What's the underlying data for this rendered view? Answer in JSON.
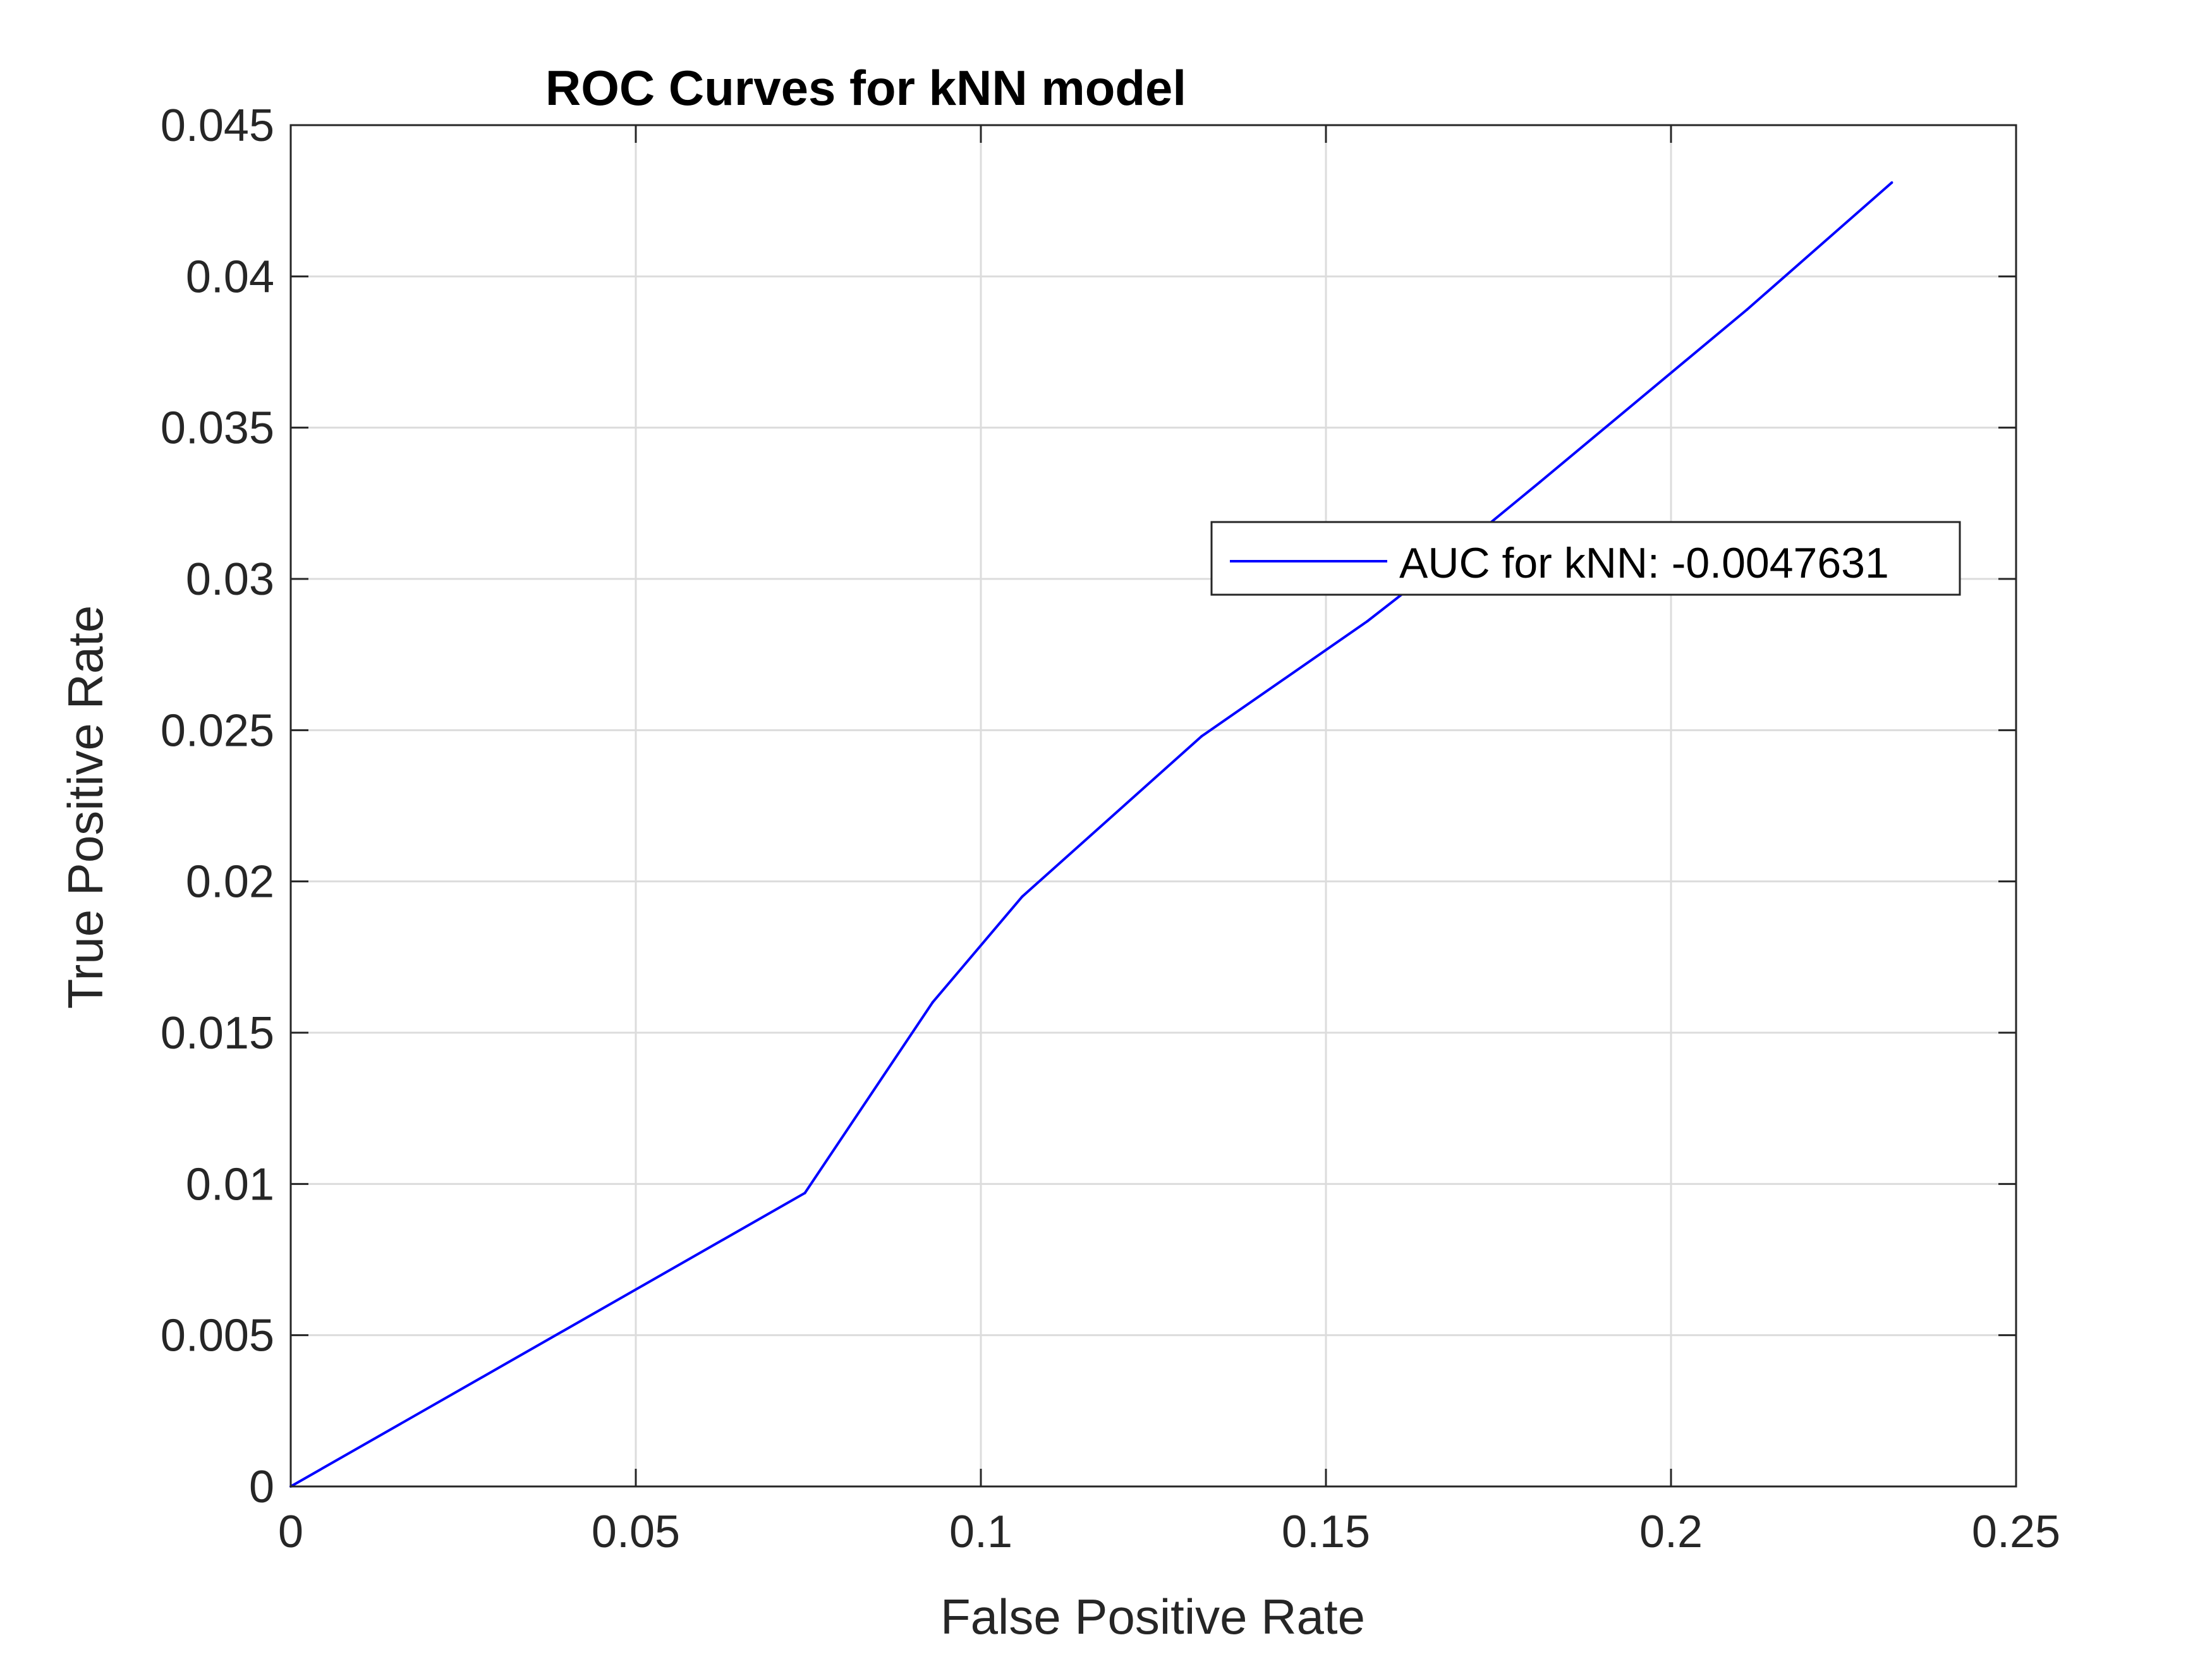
{
  "chart_data": {
    "type": "line",
    "title": "ROC Curves for kNN model",
    "xlabel": "False Positive Rate",
    "ylabel": "True Positive Rate",
    "xlim": [
      0,
      0.25
    ],
    "ylim": [
      0,
      0.045
    ],
    "xticks": [
      0,
      0.05,
      0.1,
      0.15,
      0.2,
      0.25
    ],
    "xtick_labels": [
      "0",
      "0.05",
      "0.1",
      "0.15",
      "0.2",
      "0.25"
    ],
    "yticks": [
      0,
      0.005,
      0.01,
      0.015,
      0.02,
      0.025,
      0.03,
      0.035,
      0.04,
      0.045
    ],
    "ytick_labels": [
      "0",
      "0.005",
      "0.01",
      "0.015",
      "0.02",
      "0.025",
      "0.03",
      "0.035",
      "0.04",
      "0.045"
    ],
    "grid": true,
    "legend_position": "upper-right",
    "series": [
      {
        "name": "AUC for kNN: -0.0047631",
        "color": "#0000ff",
        "x": [
          0,
          0.0745,
          0.093,
          0.106,
          0.132,
          0.156,
          0.165,
          0.181,
          0.211,
          0.232
        ],
        "y": [
          0,
          0.0097,
          0.016,
          0.0195,
          0.0248,
          0.0286,
          0.0302,
          0.0332,
          0.0389,
          0.0431
        ]
      }
    ]
  }
}
